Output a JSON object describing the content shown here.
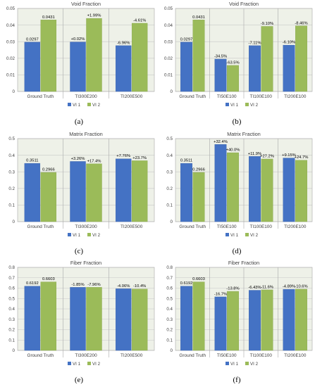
{
  "colors": {
    "vi1": "#4472C4",
    "vi2": "#9BBB59",
    "plot_bg": "#EEF1E8",
    "grid": "#C8C8C8",
    "sep": "#A9A9A9",
    "text": "#404040"
  },
  "chart_data": [
    {
      "id": "a",
      "panel_label": "(a)",
      "type": "bar",
      "title": "Void Fraction",
      "xlabel": "",
      "ylabel": "",
      "ylim": [
        0,
        0.05
      ],
      "yticks": [
        "0",
        "0.01",
        "0.02",
        "0.03",
        "0.04",
        "0.05"
      ],
      "grid": true,
      "legend_position": "bottom-center",
      "categories": [
        "Ground Truth",
        "TI300E200",
        "TI200E500"
      ],
      "series": [
        {
          "name": "VI 1",
          "values": [
            0.0297,
            0.0298,
            0.0276
          ],
          "labels": [
            "0.0297",
            "+0.02%",
            "-6.96%"
          ]
        },
        {
          "name": "VI 2",
          "values": [
            0.0431,
            0.044,
            0.0411
          ],
          "labels": [
            "0.0431",
            "+1.99%",
            "-4.61%"
          ]
        }
      ]
    },
    {
      "id": "b",
      "panel_label": "(b)",
      "type": "bar",
      "title": "Void Fraction",
      "xlabel": "",
      "ylabel": "",
      "ylim": [
        0,
        0.05
      ],
      "yticks": [
        "0",
        "0.01",
        "0.02",
        "0.03",
        "0.04",
        "0.05"
      ],
      "grid": true,
      "legend_position": "bottom-center",
      "categories": [
        "Ground Truth",
        "TI50E100",
        "TI100E100",
        "TI200E100"
      ],
      "series": [
        {
          "name": "VI 1",
          "values": [
            0.0297,
            0.0195,
            0.0276,
            0.0279
          ],
          "labels": [
            "0.0297",
            "-34.5%",
            "-7.11%",
            "-6.10%"
          ]
        },
        {
          "name": "VI 2",
          "values": [
            0.0431,
            0.0157,
            0.0392,
            0.0395
          ],
          "labels": [
            "0.0431",
            "-63.5%",
            "-9.10%",
            "-8.46%"
          ]
        }
      ]
    },
    {
      "id": "c",
      "panel_label": "(c)",
      "type": "bar",
      "title": "Matrix Fraction",
      "xlabel": "",
      "ylabel": "",
      "ylim": [
        0,
        0.5
      ],
      "yticks": [
        "0",
        "0.1",
        "0.2",
        "0.3",
        "0.4",
        "0.5"
      ],
      "grid": true,
      "legend_position": "bottom-center",
      "categories": [
        "Ground Truth",
        "TI300E200",
        "TI200E500"
      ],
      "series": [
        {
          "name": "VI 1",
          "values": [
            0.3511,
            0.3625,
            0.3783
          ],
          "labels": [
            "0.3511",
            "+3.26%",
            "+7.76%"
          ]
        },
        {
          "name": "VI 2",
          "values": [
            0.2966,
            0.3482,
            0.3669
          ],
          "labels": [
            "0.2966",
            "+17.4%",
            "+23.7%"
          ]
        }
      ]
    },
    {
      "id": "d",
      "panel_label": "(d)",
      "type": "bar",
      "title": "Matrix Fraction",
      "xlabel": "",
      "ylabel": "",
      "ylim": [
        0,
        0.5
      ],
      "yticks": [
        "0",
        "0.1",
        "0.2",
        "0.3",
        "0.4",
        "0.5"
      ],
      "grid": true,
      "legend_position": "bottom-center",
      "categories": [
        "Ground Truth",
        "TI50E100",
        "TI100E100",
        "TI200E100"
      ],
      "series": [
        {
          "name": "VI 1",
          "values": [
            0.3511,
            0.4648,
            0.3929,
            0.3832
          ],
          "labels": [
            "0.3511",
            "+32.4%",
            "+11.9%",
            "+9.15%"
          ]
        },
        {
          "name": "VI 2",
          "values": [
            0.2966,
            0.4152,
            0.3773,
            0.3699
          ],
          "labels": [
            "0.2966",
            "+40.0%",
            "+27.2%",
            "+24.7%"
          ]
        }
      ]
    },
    {
      "id": "e",
      "panel_label": "(e)",
      "type": "bar",
      "title": "Fiber Fraction",
      "xlabel": "",
      "ylabel": "",
      "ylim": [
        0,
        0.8
      ],
      "yticks": [
        "0",
        "0.1",
        "0.2",
        "0.3",
        "0.4",
        "0.5",
        "0.6",
        "0.7",
        "0.8"
      ],
      "grid": true,
      "legend_position": "bottom-center",
      "categories": [
        "Ground Truth",
        "TI300E200",
        "TI200E500"
      ],
      "series": [
        {
          "name": "VI 1",
          "values": [
            0.6192,
            0.6077,
            0.594
          ],
          "labels": [
            "0.6192",
            "-1.85%",
            "-4.06%"
          ]
        },
        {
          "name": "VI 2",
          "values": [
            0.6603,
            0.6077,
            0.5916
          ],
          "labels": [
            "0.6603",
            "-7.96%",
            "-10.4%"
          ]
        }
      ]
    },
    {
      "id": "f",
      "panel_label": "(f)",
      "type": "bar",
      "title": "Fiber Fraction",
      "xlabel": "",
      "ylabel": "",
      "ylim": [
        0,
        0.8
      ],
      "yticks": [
        "0",
        "0.1",
        "0.2",
        "0.3",
        "0.4",
        "0.5",
        "0.6",
        "0.7",
        "0.8"
      ],
      "grid": true,
      "legend_position": "bottom-center",
      "categories": [
        "Ground Truth",
        "TI50E100",
        "TI100E100",
        "TI200E100"
      ],
      "series": [
        {
          "name": "VI 1",
          "values": [
            0.6192,
            0.5158,
            0.5794,
            0.5889
          ],
          "labels": [
            "0.6192",
            "-16.7%",
            "-6.43%",
            "-4.89%"
          ]
        },
        {
          "name": "VI 2",
          "values": [
            0.6603,
            0.5692,
            0.5837,
            0.5903
          ],
          "labels": [
            "0.6603",
            "-13.8%",
            "-11.6%",
            "-10.6%"
          ]
        }
      ]
    }
  ]
}
